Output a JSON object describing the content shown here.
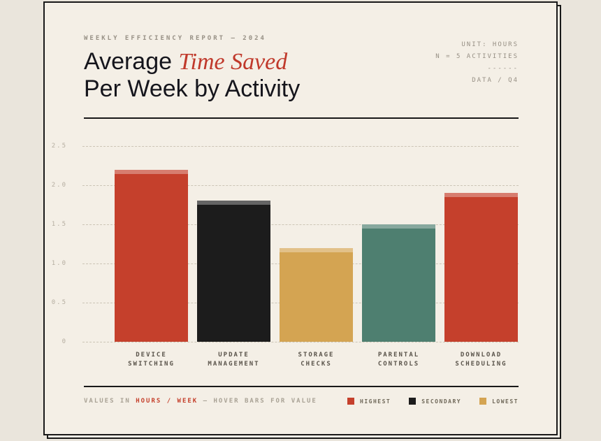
{
  "header": {
    "eyebrow": "WEEKLY EFFICIENCY REPORT — 2024",
    "title_regular": "Average ",
    "title_accent": "Time Saved",
    "title_line2": "Per Week by Activity",
    "meta": [
      "UNIT: HOURS",
      "N = 5 ACTIVITIES",
      "------",
      "DATA / Q4"
    ]
  },
  "chart_data": {
    "type": "bar",
    "title": "Average Time Saved Per Week by Activity",
    "unit": "hours per week",
    "categories": [
      "DEVICE SWITCHING",
      "UPDATE MANAGEMENT",
      "STORAGE CHECKS",
      "PARENTAL CONTROLS",
      "DOWNLOAD SCHEDULING"
    ],
    "values": [
      2.2,
      1.8,
      1.2,
      1.5,
      1.9
    ],
    "bar_colors": [
      "#c5402c",
      "#1c1c1c",
      "#d4a452",
      "#4e7f70",
      "#c5402c"
    ],
    "ylim": [
      0,
      2.5
    ],
    "yticks": [
      "2.5",
      "2.0",
      "1.5",
      "1.0",
      "0.5",
      "0"
    ],
    "grid": "horizontal dashed",
    "legend_position": "bottom-right"
  },
  "footer": {
    "note_prefix": "VALUES IN ",
    "note_accent": "HOURS / WEEK",
    "note_suffix": " — HOVER BARS FOR VALUE",
    "legend": [
      {
        "label": "HIGHEST",
        "color": "#c5402c"
      },
      {
        "label": "SECONDARY",
        "color": "#1c1c1c"
      },
      {
        "label": "LOWEST",
        "color": "#d4a452"
      }
    ]
  },
  "colors": {
    "page_background": "#eae5dc",
    "card_background": "#f4efe6",
    "border": "#191919",
    "accent_red": "#c0392b",
    "grid": "#ccc5b6"
  }
}
